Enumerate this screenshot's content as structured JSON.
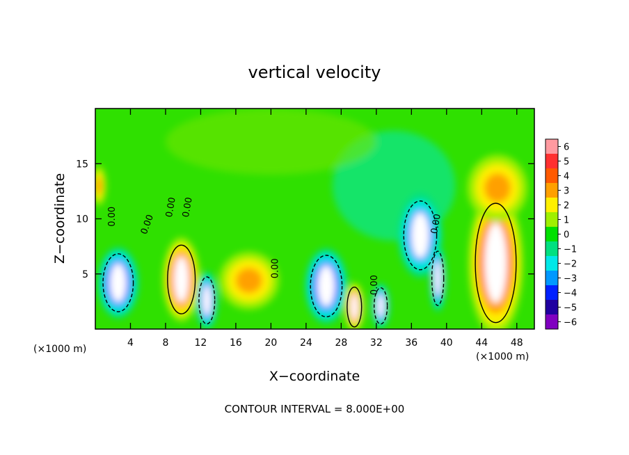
{
  "chart_data": {
    "type": "heatmap",
    "title": "vertical velocity",
    "xlabel": "X−coordinate",
    "ylabel": "Z−coordinate",
    "x_unit_left": "(×1000 m)",
    "x_unit_right": "(×1000 m)",
    "footer": "CONTOUR INTERVAL = 8.000E+00",
    "xlim": [
      0,
      50
    ],
    "ylim": [
      0,
      20
    ],
    "xticks": [
      4,
      8,
      12,
      16,
      20,
      24,
      28,
      32,
      36,
      40,
      44,
      48
    ],
    "xtick_labels": [
      "4",
      "8",
      "12",
      "16",
      "20",
      "24",
      "28",
      "32",
      "36",
      "40",
      "44",
      "48"
    ],
    "yticks": [
      5,
      10,
      15
    ],
    "ytick_labels": [
      "5",
      "10",
      "15"
    ],
    "colorbar": {
      "levels": [
        6,
        5,
        4,
        3,
        2,
        1,
        0,
        -1,
        -2,
        -3,
        -4,
        -5,
        -6
      ],
      "labels": [
        "6",
        "5",
        "4",
        "3",
        "2",
        "1",
        "0",
        "−1",
        "−2",
        "−3",
        "−4",
        "−5",
        "−6"
      ],
      "colors": [
        "#ff9aa0",
        "#ff3030",
        "#ff5a00",
        "#ffa000",
        "#fff000",
        "#a0f000",
        "#00e000",
        "#00e080",
        "#00e8e8",
        "#0098ff",
        "#0020ff",
        "#2000a0",
        "#8000c0"
      ]
    },
    "contour_labels": [
      {
        "text": "0.00",
        "x": 2.2,
        "y": 10.2,
        "rotate": -90
      },
      {
        "text": "0.00",
        "x": 6.2,
        "y": 9.4,
        "rotate": -70
      },
      {
        "text": "0.00",
        "x": 8.9,
        "y": 11.0,
        "rotate": -80
      },
      {
        "text": "0.00",
        "x": 10.8,
        "y": 11.0,
        "rotate": -80
      },
      {
        "text": "0.00",
        "x": 20.8,
        "y": 5.5,
        "rotate": -90
      },
      {
        "text": "0.00",
        "x": 32.1,
        "y": 4.0,
        "rotate": -90
      },
      {
        "text": "0.00",
        "x": 39.1,
        "y": 9.5,
        "rotate": -80
      }
    ],
    "updraft_cores": [
      {
        "name": "core-a",
        "x": 2.6,
        "z": 4.2,
        "rx": 2.3,
        "rz": 3.2,
        "w": -6
      },
      {
        "name": "core-b",
        "x": 9.8,
        "z": 4.5,
        "rx": 2.1,
        "rz": 3.8,
        "w": 6
      },
      {
        "name": "core-c",
        "x": 12.7,
        "z": 2.6,
        "rx": 1.2,
        "rz": 2.6,
        "w": -6
      },
      {
        "name": "core-d",
        "x": 17.5,
        "z": 4.4,
        "rx": 3.4,
        "rz": 2.6,
        "w": 3
      },
      {
        "name": "core-e",
        "x": 26.3,
        "z": 3.9,
        "rx": 2.4,
        "rz": 3.4,
        "w": -6
      },
      {
        "name": "core-f",
        "x": 29.5,
        "z": 2.0,
        "rx": 1.1,
        "rz": 2.2,
        "w": 6
      },
      {
        "name": "core-g",
        "x": 32.5,
        "z": 2.1,
        "rx": 1.0,
        "rz": 2.0,
        "w": -6
      },
      {
        "name": "core-h",
        "x": 37.0,
        "z": 8.5,
        "rx": 2.5,
        "rz": 3.8,
        "w": -5
      },
      {
        "name": "core-i",
        "x": 39.0,
        "z": 4.6,
        "rx": 0.9,
        "rz": 3.0,
        "w": -6
      },
      {
        "name": "core-j",
        "x": 45.6,
        "z": 6.0,
        "rx": 3.1,
        "rz": 6.6,
        "w": 6
      },
      {
        "name": "core-k",
        "x": 45.8,
        "z": 12.8,
        "rx": 3.4,
        "rz": 3.0,
        "w": 3
      },
      {
        "name": "core-l",
        "x": 0.4,
        "z": 13.0,
        "rx": 0.8,
        "rz": 1.8,
        "w": 3
      }
    ]
  }
}
